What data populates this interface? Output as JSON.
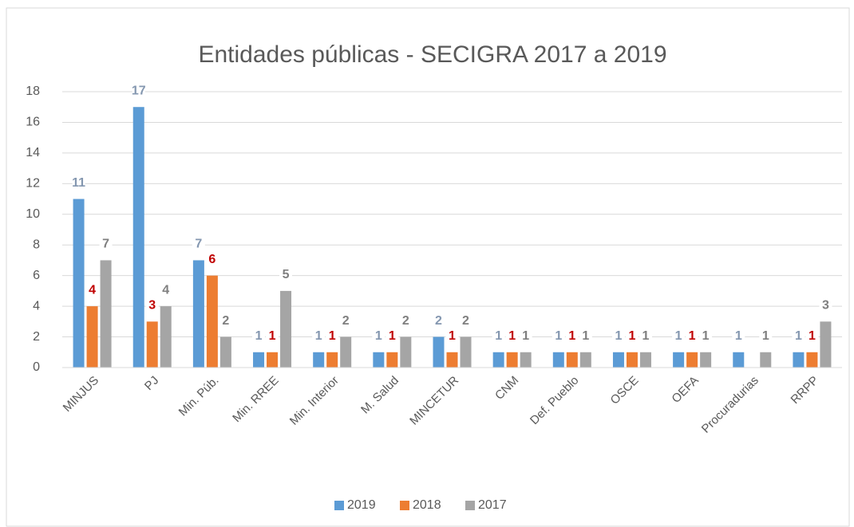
{
  "chart_data": {
    "type": "bar",
    "title": "Entidades públicas - SECIGRA 2017 a 2019",
    "categories": [
      "MINJUS",
      "PJ",
      "Min. Púb.",
      "Min. RREE",
      "Min. Interior",
      "M. Salud",
      "MINCETUR",
      "CNM",
      "Def. Pueblo",
      "OSCE",
      "OEFA",
      "Procuradurias",
      "RRPP"
    ],
    "series": [
      {
        "name": "2019",
        "color": "#5b9bd5",
        "label_color": "#8497b0",
        "values": [
          11,
          17,
          7,
          1,
          1,
          1,
          2,
          1,
          1,
          1,
          1,
          1,
          1
        ]
      },
      {
        "name": "2018",
        "color": "#ed7d31",
        "label_color": "#c00000",
        "values": [
          4,
          3,
          6,
          1,
          1,
          1,
          1,
          1,
          1,
          1,
          1,
          null,
          1
        ]
      },
      {
        "name": "2017",
        "color": "#a5a5a5",
        "label_color": "#7f7f7f",
        "values": [
          7,
          4,
          2,
          5,
          2,
          2,
          2,
          1,
          1,
          1,
          1,
          1,
          3
        ]
      }
    ],
    "ylim": [
      0,
      18
    ],
    "yticks": [
      0,
      2,
      4,
      6,
      8,
      10,
      12,
      14,
      16,
      18
    ],
    "grid": true,
    "legend": "bottom"
  }
}
